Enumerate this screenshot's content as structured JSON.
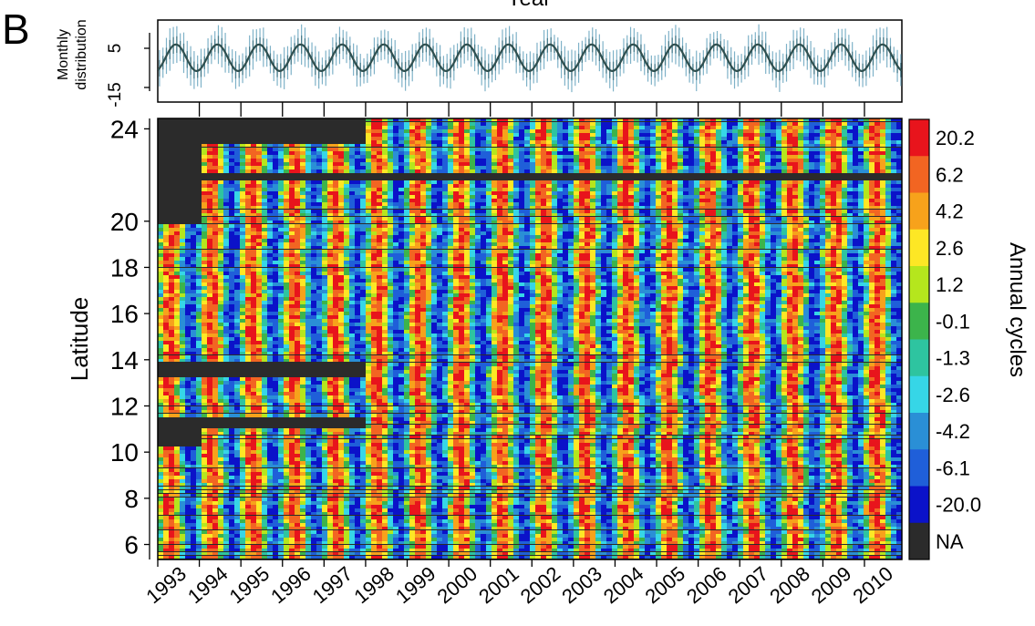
{
  "panel_label": "B",
  "top_axis_title": "Year",
  "monthly_ylabel_line1": "Monthly",
  "monthly_ylabel_line2": "distribution",
  "colorbar_label": "Annual cycles",
  "colors": {
    "na": "#2b2b2b",
    "mean_line": "#2f4f4f",
    "monthly_ticks": "#7fb2c8",
    "frame": "#000000"
  },
  "chart_data": [
    {
      "type": "line",
      "title": "",
      "ylabel": "Monthly distribution",
      "xlabel": "Year",
      "x_categories": [
        "1993",
        "1994",
        "1995",
        "1996",
        "1997",
        "1998",
        "1999",
        "2000",
        "2001",
        "2002",
        "2003",
        "2004",
        "2005",
        "2006",
        "2007",
        "2008",
        "2009",
        "2010"
      ],
      "y_ticks": [
        "-15",
        "5"
      ],
      "ylim": [
        -22,
        15
      ],
      "series_description_values": {
        "cycle_mean_min": -8,
        "cycle_mean_max": 4,
        "cycles_per_year": 1,
        "spread": 8
      },
      "grid": false
    },
    {
      "type": "heatmap",
      "title": "",
      "xlabel": "",
      "ylabel": "Latitude",
      "x_ticks": [
        "1993",
        "1994",
        "1995",
        "1996",
        "1997",
        "1998",
        "1999",
        "2000",
        "2001",
        "2002",
        "2003",
        "2004",
        "2005",
        "2006",
        "2007",
        "2008",
        "2009",
        "2010"
      ],
      "x_range": [
        1993,
        2010.9
      ],
      "y_ticks": [
        "6",
        "8",
        "10",
        "12",
        "14",
        "16",
        "18",
        "20",
        "24"
      ],
      "y_tick_values": [
        6,
        8,
        10,
        12,
        14,
        16,
        18,
        20,
        24
      ],
      "y_range": [
        5.35,
        24.45
      ],
      "colorbar": {
        "label": "Annual cycles",
        "levels": [
          "20.2",
          "6.2",
          "4.2",
          "2.6",
          "1.2",
          "-0.1",
          "-1.3",
          "-2.6",
          "-4.2",
          "-6.1",
          "-20.0",
          "NA"
        ],
        "colors": [
          "#e8141c",
          "#f26522",
          "#f7a21b",
          "#fde725",
          "#b5e61d",
          "#3cb44b",
          "#2ec4a0",
          "#36d6e7",
          "#2a8fd6",
          "#1f5fd9",
          "#0b12c9",
          "#2b2b2b"
        ]
      },
      "missing_data_regions": [
        {
          "from_year": 1993,
          "to_year": 1998,
          "lat_from": 23.4,
          "lat_to": 24.45
        },
        {
          "from_year": 1993,
          "to_year": 1994,
          "lat_from": 19.8,
          "lat_to": 24.45
        },
        {
          "from_year": 1993,
          "to_year": 2010.9,
          "lat_from": 21.7,
          "lat_to": 22.1
        },
        {
          "from_year": 1993,
          "to_year": 1994,
          "lat_from": 10.3,
          "lat_to": 11.5
        },
        {
          "from_year": 1993,
          "to_year": 1998,
          "lat_from": 13.2,
          "lat_to": 13.8
        },
        {
          "from_year": 1993,
          "to_year": 1998,
          "lat_from": 11.0,
          "lat_to": 11.5
        }
      ],
      "annual_cycle_phase": "positive peaks near mid-year of each year from 1998 onward",
      "grid": false
    }
  ]
}
